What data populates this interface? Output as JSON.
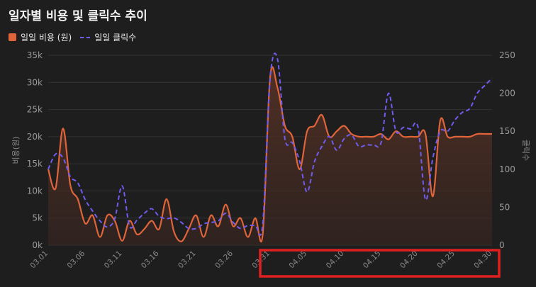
{
  "title": "일자별 비용 및 클릭수 추이",
  "legend": {
    "cost": "일일 비용 (원)",
    "clicks": "일일 클릭수"
  },
  "colors": {
    "cost": "#e0643a",
    "clicks": "#6f5cf0",
    "highlight": "#e02020"
  },
  "chart_data": {
    "type": "line",
    "x": [
      "03.01",
      "03.02",
      "03.03",
      "03.04",
      "03.05",
      "03.06",
      "03.07",
      "03.08",
      "03.09",
      "03.10",
      "03.11",
      "03.12",
      "03.13",
      "03.14",
      "03.15",
      "03.16",
      "03.17",
      "03.18",
      "03.19",
      "03.20",
      "03.21",
      "03.22",
      "03.23",
      "03.24",
      "03.25",
      "03.26",
      "03.27",
      "03.28",
      "03.29",
      "03.30",
      "03.31",
      "04.01",
      "04.02",
      "04.03",
      "04.04",
      "04.05",
      "04.06",
      "04.07",
      "04.08",
      "04.09",
      "04.10",
      "04.11",
      "04.12",
      "04.13",
      "04.14",
      "04.15",
      "04.16",
      "04.17",
      "04.18",
      "04.19",
      "04.20",
      "04.21",
      "04.22",
      "04.23",
      "04.24",
      "04.25",
      "04.26",
      "04.27",
      "04.28",
      "04.29",
      "04.30"
    ],
    "tick_labels": [
      "03.01",
      "03.06",
      "03.11",
      "03.16",
      "03.21",
      "03.26",
      "03.31",
      "04.05",
      "04.10",
      "04.15",
      "04.20",
      "04.25",
      "04.30"
    ],
    "series": [
      {
        "name": "일일 비용 (원)",
        "axis": "left",
        "style": "solid-area",
        "values": [
          14000,
          10500,
          21500,
          11000,
          8500,
          4000,
          5500,
          1500,
          5500,
          4500,
          800,
          4500,
          2000,
          3000,
          4500,
          3000,
          8500,
          2500,
          700,
          3000,
          5500,
          1500,
          5500,
          3500,
          7500,
          3500,
          5000,
          1500,
          5000,
          2000,
          31000,
          29000,
          22000,
          20000,
          14000,
          21000,
          22000,
          24000,
          20000,
          21000,
          22000,
          20500,
          20000,
          20000,
          20000,
          20500,
          19500,
          21000,
          20000,
          20000,
          20000,
          20500,
          9000,
          23000,
          20000,
          20000,
          20000,
          20000,
          20500,
          20500,
          20500
        ]
      },
      {
        "name": "일일 클릭수",
        "axis": "right",
        "style": "dashed",
        "values": [
          100,
          120,
          115,
          90,
          82,
          60,
          45,
          32,
          24,
          35,
          78,
          25,
          33,
          42,
          48,
          38,
          35,
          36,
          30,
          22,
          22,
          28,
          30,
          32,
          42,
          30,
          22,
          26,
          26,
          28,
          220,
          245,
          140,
          135,
          110,
          70,
          110,
          130,
          143,
          125,
          140,
          145,
          130,
          132,
          132,
          135,
          200,
          150,
          155,
          153,
          155,
          60,
          115,
          150,
          150,
          165,
          175,
          180,
          200,
          210,
          220
        ]
      }
    ],
    "yaxis_left": {
      "label": "비용(원)",
      "min": 0,
      "max": 35000,
      "ticks": [
        "0k",
        "5k",
        "10k",
        "15k",
        "20k",
        "25k",
        "30k",
        "35k"
      ]
    },
    "yaxis_right": {
      "label": "클릭수",
      "min": 0,
      "max": 250,
      "ticks": [
        "0",
        "50",
        "100",
        "150",
        "200",
        "250"
      ]
    },
    "grid": true,
    "legend_position": "top-left",
    "highlight": {
      "from": "03.31",
      "to": "04.30"
    }
  }
}
